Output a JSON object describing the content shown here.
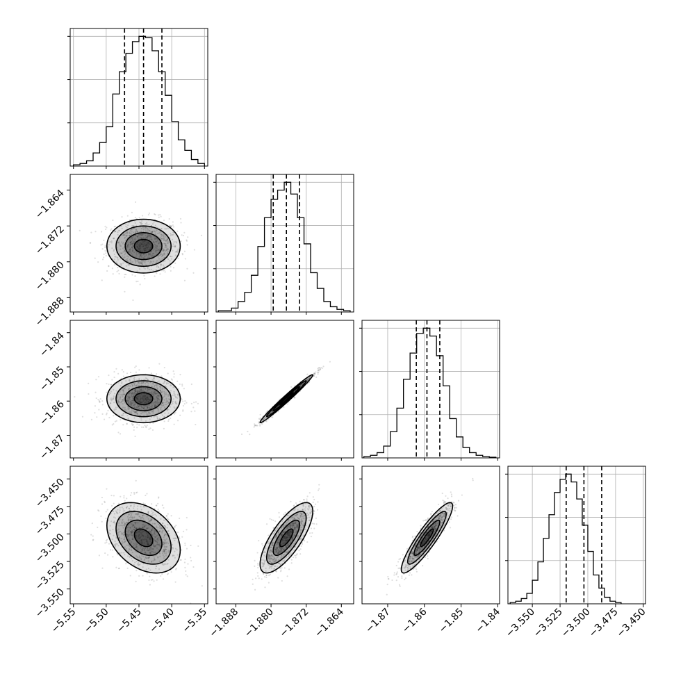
{
  "chart_data": [
    {
      "type": "histogram",
      "panel": "diag-0",
      "bins_x": [
        -5.55,
        -5.54,
        -5.53,
        -5.52,
        -5.51,
        -5.5,
        -5.49,
        -5.48,
        -5.47,
        -5.46,
        -5.45,
        -5.44,
        -5.43,
        -5.42,
        -5.41,
        -5.4,
        -5.39,
        -5.38,
        -5.37,
        -5.36,
        -5.35
      ],
      "counts": [
        0.01,
        0.02,
        0.04,
        0.1,
        0.18,
        0.3,
        0.55,
        0.72,
        0.86,
        0.95,
        0.99,
        0.98,
        0.88,
        0.72,
        0.54,
        0.34,
        0.2,
        0.12,
        0.05,
        0.02
      ],
      "quantiles": [
        -5.472,
        -5.443,
        -5.415
      ],
      "xlim": [
        -5.555,
        -5.345
      ],
      "ylim": [
        0,
        1.05
      ]
    },
    {
      "type": "histogram",
      "panel": "diag-1",
      "bins_x": [
        -1.892,
        -1.8905,
        -1.889,
        -1.8875,
        -1.886,
        -1.8845,
        -1.883,
        -1.8815,
        -1.88,
        -1.8785,
        -1.877,
        -1.8755,
        -1.874,
        -1.8725,
        -1.871,
        -1.8695,
        -1.868,
        -1.8665,
        -1.865,
        -1.8635,
        -1.862
      ],
      "counts": [
        0.01,
        0.01,
        0.03,
        0.08,
        0.15,
        0.28,
        0.5,
        0.72,
        0.86,
        0.93,
        0.99,
        0.9,
        0.72,
        0.52,
        0.3,
        0.18,
        0.08,
        0.04,
        0.02,
        0.01
      ],
      "quantiles": [
        -1.8795,
        -1.8765,
        -1.8735
      ],
      "xlim": [
        -1.8925,
        -1.8612
      ],
      "ylim": [
        0,
        1.05
      ]
    },
    {
      "type": "histogram",
      "panel": "diag-2",
      "bins_x": [
        -1.8765,
        -1.8747,
        -1.8729,
        -1.8711,
        -1.8693,
        -1.8675,
        -1.8657,
        -1.8639,
        -1.8621,
        -1.8603,
        -1.8585,
        -1.8567,
        -1.8549,
        -1.8531,
        -1.8513,
        -1.8495,
        -1.8477,
        -1.8459,
        -1.8441,
        -1.8423,
        -1.8405
      ],
      "counts": [
        0.01,
        0.02,
        0.04,
        0.09,
        0.2,
        0.38,
        0.6,
        0.8,
        0.95,
        0.99,
        0.93,
        0.78,
        0.55,
        0.3,
        0.16,
        0.08,
        0.04,
        0.02,
        0.01,
        0.005
      ],
      "quantiles": [
        -1.8622,
        -1.8593,
        -1.8558
      ],
      "xlim": [
        -1.877,
        -1.8395
      ],
      "ylim": [
        0,
        1.05
      ]
    },
    {
      "type": "histogram",
      "panel": "diag-3",
      "bins_x": [
        -3.57,
        -3.565,
        -3.56,
        -3.555,
        -3.55,
        -3.545,
        -3.54,
        -3.535,
        -3.53,
        -3.525,
        -3.52,
        -3.515,
        -3.51,
        -3.505,
        -3.5,
        -3.495,
        -3.49,
        -3.485,
        -3.48,
        -3.475,
        -3.47
      ],
      "counts": [
        0.01,
        0.02,
        0.04,
        0.08,
        0.18,
        0.32,
        0.5,
        0.68,
        0.85,
        0.95,
        0.99,
        0.93,
        0.8,
        0.6,
        0.4,
        0.22,
        0.12,
        0.05,
        0.02,
        0.01
      ],
      "quantiles": [
        -3.5195,
        -3.5035,
        -3.4875
      ],
      "xlim": [
        -3.572,
        -3.448
      ],
      "ylim": [
        0,
        1.05
      ]
    },
    {
      "type": "scatter",
      "panel": "pair-1-0",
      "x_center": -5.443,
      "y_center": -1.8765,
      "x_sd": 0.028,
      "y_sd": 0.003,
      "corr": 0.0,
      "contour_levels": [
        0.5,
        1.0,
        1.5,
        2.0
      ]
    },
    {
      "type": "scatter",
      "panel": "pair-2-0",
      "x_center": -5.443,
      "y_center": -1.8593,
      "x_sd": 0.028,
      "y_sd": 0.0035,
      "corr": 0.0,
      "contour_levels": [
        0.5,
        1.0,
        1.5,
        2.0
      ]
    },
    {
      "type": "scatter",
      "panel": "pair-2-1",
      "x_center": -1.8765,
      "y_center": -1.8593,
      "x_sd": 0.003,
      "y_sd": 0.0035,
      "corr": 0.985,
      "contour_levels": [
        0.5,
        1.0,
        1.5,
        2.0
      ]
    },
    {
      "type": "scatter",
      "panel": "pair-3-0",
      "x_center": -5.443,
      "y_center": -3.5035,
      "x_sd": 0.028,
      "y_sd": 0.016,
      "corr": -0.35,
      "contour_levels": [
        0.5,
        1.0,
        1.5,
        2.0
      ]
    },
    {
      "type": "scatter",
      "panel": "pair-3-1",
      "x_center": -1.8765,
      "y_center": -3.5035,
      "x_sd": 0.003,
      "y_sd": 0.016,
      "corr": 0.75,
      "contour_levels": [
        0.5,
        1.0,
        1.5,
        2.0
      ]
    },
    {
      "type": "scatter",
      "panel": "pair-3-2",
      "x_center": -1.8593,
      "y_center": -3.5035,
      "x_sd": 0.0035,
      "y_sd": 0.016,
      "corr": 0.9,
      "contour_levels": [
        0.5,
        1.0,
        1.5,
        2.0
      ]
    }
  ],
  "axes": {
    "x": [
      {
        "ticks": [
          -5.55,
          -5.5,
          -5.45,
          -5.4,
          -5.35
        ],
        "labels": [
          "−5.55",
          "−5.50",
          "−5.45",
          "−5.40",
          "−5.35"
        ],
        "lim": [
          -5.555,
          -5.345
        ]
      },
      {
        "ticks": [
          -1.888,
          -1.88,
          -1.872,
          -1.864
        ],
        "labels": [
          "−1.888",
          "−1.880",
          "−1.872",
          "−1.864"
        ],
        "lim": [
          -1.8925,
          -1.8612
        ]
      },
      {
        "ticks": [
          -1.87,
          -1.86,
          -1.85,
          -1.84
        ],
        "labels": [
          "−1.87",
          "−1.86",
          "−1.85",
          "−1.84"
        ],
        "lim": [
          -1.877,
          -1.8395
        ]
      },
      {
        "ticks": [
          -3.55,
          -3.525,
          -3.5,
          -3.475,
          -3.45
        ],
        "labels": [
          "−3.550",
          "−3.525",
          "−3.500",
          "−3.475",
          "−3.450"
        ],
        "lim": [
          -3.572,
          -3.448
        ]
      }
    ],
    "y": [
      null,
      {
        "ticks": [
          -1.864,
          -1.872,
          -1.88,
          -1.888
        ],
        "labels": [
          "−1.864",
          "−1.872",
          "−1.880",
          "−1.888"
        ],
        "lim": [
          -1.8912,
          -1.8605
        ]
      },
      {
        "ticks": [
          -1.84,
          -1.85,
          -1.86,
          -1.87
        ],
        "labels": [
          "−1.84",
          "−1.85",
          "−1.86",
          "−1.87"
        ],
        "lim": [
          -1.8766,
          -1.8364
        ]
      },
      {
        "ticks": [
          -3.45,
          -3.475,
          -3.5,
          -3.525,
          -3.55
        ],
        "labels": [
          "−3.450",
          "−3.475",
          "−3.500",
          "−3.525",
          "−3.550"
        ],
        "lim": [
          -3.5635,
          -3.4385
        ]
      }
    ]
  },
  "style": {
    "ink": "#000000",
    "grid": "#b0b0b0",
    "background": "#ffffff"
  }
}
